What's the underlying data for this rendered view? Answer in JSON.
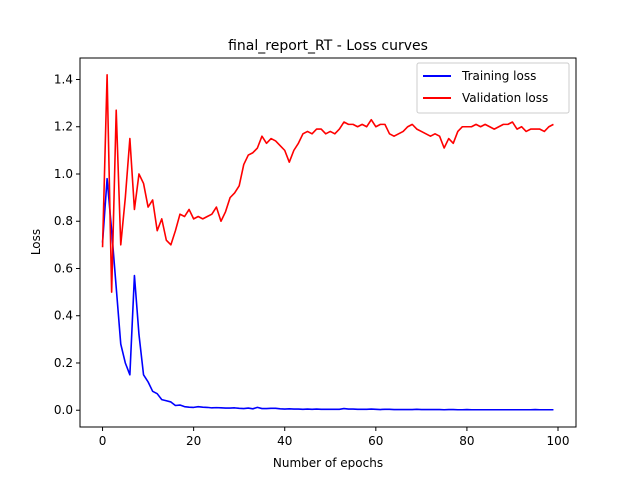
{
  "chart_data": {
    "type": "line",
    "title": "final_report_RT - Loss curves",
    "xlabel": "Number of epochs",
    "ylabel": "Loss",
    "xlim": [
      -4.95,
      103.95
    ],
    "ylim": [
      -0.071,
      1.491
    ],
    "xticks": [
      0,
      20,
      40,
      60,
      80,
      100
    ],
    "yticks": [
      0.0,
      0.2,
      0.4,
      0.6,
      0.8,
      1.0,
      1.2,
      1.4
    ],
    "grid": false,
    "legend_position": "top-right",
    "series": [
      {
        "name": "Training loss",
        "color": "#0000ff",
        "x": [
          0,
          1,
          2,
          3,
          4,
          5,
          6,
          7,
          8,
          9,
          10,
          11,
          12,
          13,
          14,
          15,
          16,
          17,
          18,
          19,
          20,
          21,
          22,
          23,
          24,
          25,
          26,
          27,
          28,
          29,
          30,
          31,
          32,
          33,
          34,
          35,
          36,
          37,
          38,
          39,
          40,
          41,
          42,
          43,
          44,
          45,
          46,
          47,
          48,
          49,
          50,
          51,
          52,
          53,
          54,
          55,
          56,
          57,
          58,
          59,
          60,
          61,
          62,
          63,
          64,
          65,
          66,
          67,
          68,
          69,
          70,
          71,
          72,
          73,
          74,
          75,
          76,
          77,
          78,
          79,
          80,
          81,
          82,
          83,
          84,
          85,
          86,
          87,
          88,
          89,
          90,
          91,
          92,
          93,
          94,
          95,
          96,
          97,
          98,
          99
        ],
        "values": [
          0.71,
          0.98,
          0.76,
          0.52,
          0.28,
          0.2,
          0.15,
          0.57,
          0.32,
          0.15,
          0.12,
          0.08,
          0.07,
          0.045,
          0.04,
          0.035,
          0.02,
          0.022,
          0.015,
          0.013,
          0.012,
          0.015,
          0.013,
          0.012,
          0.01,
          0.011,
          0.01,
          0.009,
          0.009,
          0.01,
          0.008,
          0.007,
          0.009,
          0.006,
          0.012,
          0.007,
          0.007,
          0.008,
          0.008,
          0.006,
          0.005,
          0.006,
          0.005,
          0.005,
          0.004,
          0.005,
          0.004,
          0.005,
          0.004,
          0.004,
          0.004,
          0.004,
          0.004,
          0.007,
          0.005,
          0.005,
          0.004,
          0.004,
          0.004,
          0.005,
          0.004,
          0.003,
          0.004,
          0.004,
          0.003,
          0.003,
          0.003,
          0.003,
          0.003,
          0.004,
          0.003,
          0.003,
          0.003,
          0.003,
          0.003,
          0.002,
          0.003,
          0.003,
          0.002,
          0.002,
          0.003,
          0.002,
          0.002,
          0.002,
          0.002,
          0.002,
          0.002,
          0.002,
          0.002,
          0.002,
          0.002,
          0.002,
          0.002,
          0.002,
          0.002,
          0.003,
          0.002,
          0.002,
          0.002,
          0.002
        ]
      },
      {
        "name": "Validation loss",
        "color": "#ff0000",
        "x": [
          0,
          1,
          2,
          3,
          4,
          5,
          6,
          7,
          8,
          9,
          10,
          11,
          12,
          13,
          14,
          15,
          16,
          17,
          18,
          19,
          20,
          21,
          22,
          23,
          24,
          25,
          26,
          27,
          28,
          29,
          30,
          31,
          32,
          33,
          34,
          35,
          36,
          37,
          38,
          39,
          40,
          41,
          42,
          43,
          44,
          45,
          46,
          47,
          48,
          49,
          50,
          51,
          52,
          53,
          54,
          55,
          56,
          57,
          58,
          59,
          60,
          61,
          62,
          63,
          64,
          65,
          66,
          67,
          68,
          69,
          70,
          71,
          72,
          73,
          74,
          75,
          76,
          77,
          78,
          79,
          80,
          81,
          82,
          83,
          84,
          85,
          86,
          87,
          88,
          89,
          90,
          91,
          92,
          93,
          94,
          95,
          96,
          97,
          98,
          99
        ],
        "values": [
          0.69,
          1.42,
          0.5,
          1.27,
          0.7,
          0.9,
          1.15,
          0.85,
          1.0,
          0.96,
          0.86,
          0.89,
          0.76,
          0.81,
          0.72,
          0.7,
          0.76,
          0.83,
          0.82,
          0.85,
          0.81,
          0.82,
          0.81,
          0.82,
          0.83,
          0.86,
          0.8,
          0.84,
          0.9,
          0.92,
          0.95,
          1.04,
          1.08,
          1.09,
          1.11,
          1.16,
          1.13,
          1.15,
          1.14,
          1.12,
          1.1,
          1.05,
          1.1,
          1.13,
          1.17,
          1.18,
          1.17,
          1.19,
          1.19,
          1.17,
          1.18,
          1.17,
          1.19,
          1.22,
          1.21,
          1.21,
          1.2,
          1.21,
          1.2,
          1.23,
          1.2,
          1.21,
          1.21,
          1.17,
          1.16,
          1.17,
          1.18,
          1.2,
          1.21,
          1.19,
          1.18,
          1.17,
          1.16,
          1.17,
          1.16,
          1.11,
          1.15,
          1.13,
          1.18,
          1.2,
          1.2,
          1.2,
          1.21,
          1.2,
          1.21,
          1.2,
          1.19,
          1.2,
          1.21,
          1.21,
          1.22,
          1.19,
          1.2,
          1.18,
          1.19,
          1.19,
          1.19,
          1.18,
          1.2,
          1.21
        ]
      }
    ]
  }
}
